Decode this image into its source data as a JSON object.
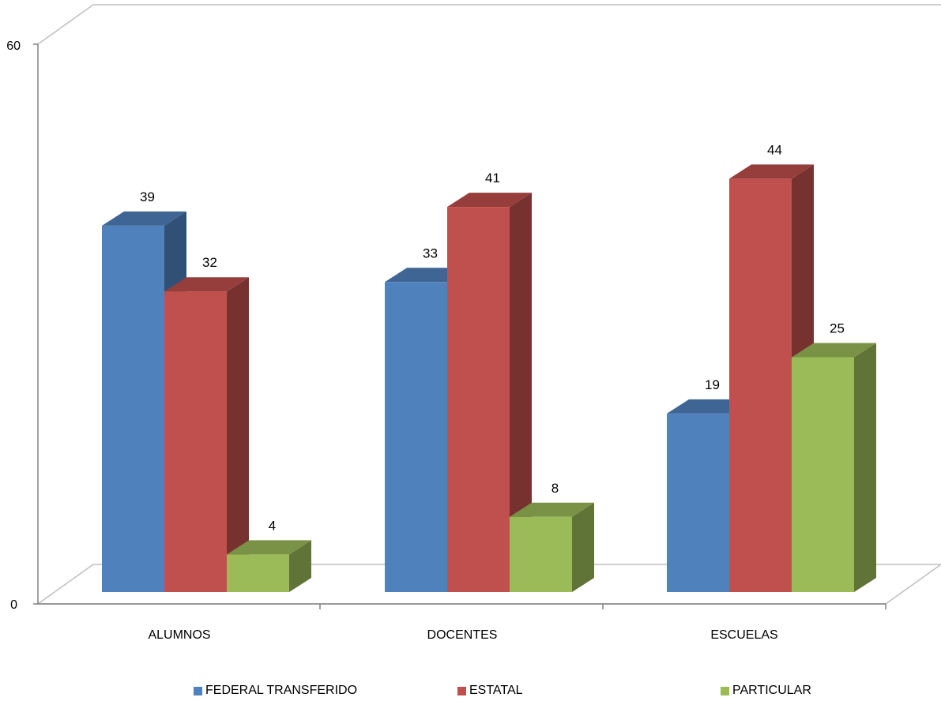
{
  "chart_data": {
    "type": "bar",
    "categories": [
      "ALUMNOS",
      "DOCENTES",
      "ESCUELAS"
    ],
    "series": [
      {
        "name": "FEDERAL TRANSFERIDO",
        "values": [
          39,
          33,
          19
        ],
        "color": "#4F81BD"
      },
      {
        "name": "ESTATAL",
        "values": [
          32,
          41,
          44
        ],
        "color": "#C0504D"
      },
      {
        "name": "PARTICULAR",
        "values": [
          4,
          8,
          25
        ],
        "color": "#9BBB59"
      }
    ],
    "ylim": [
      0,
      60
    ],
    "yticks": [
      "0",
      "60"
    ],
    "title": "",
    "xlabel": "",
    "ylabel": "",
    "legend_position": "bottom",
    "grid": false,
    "style": "3d-column"
  }
}
